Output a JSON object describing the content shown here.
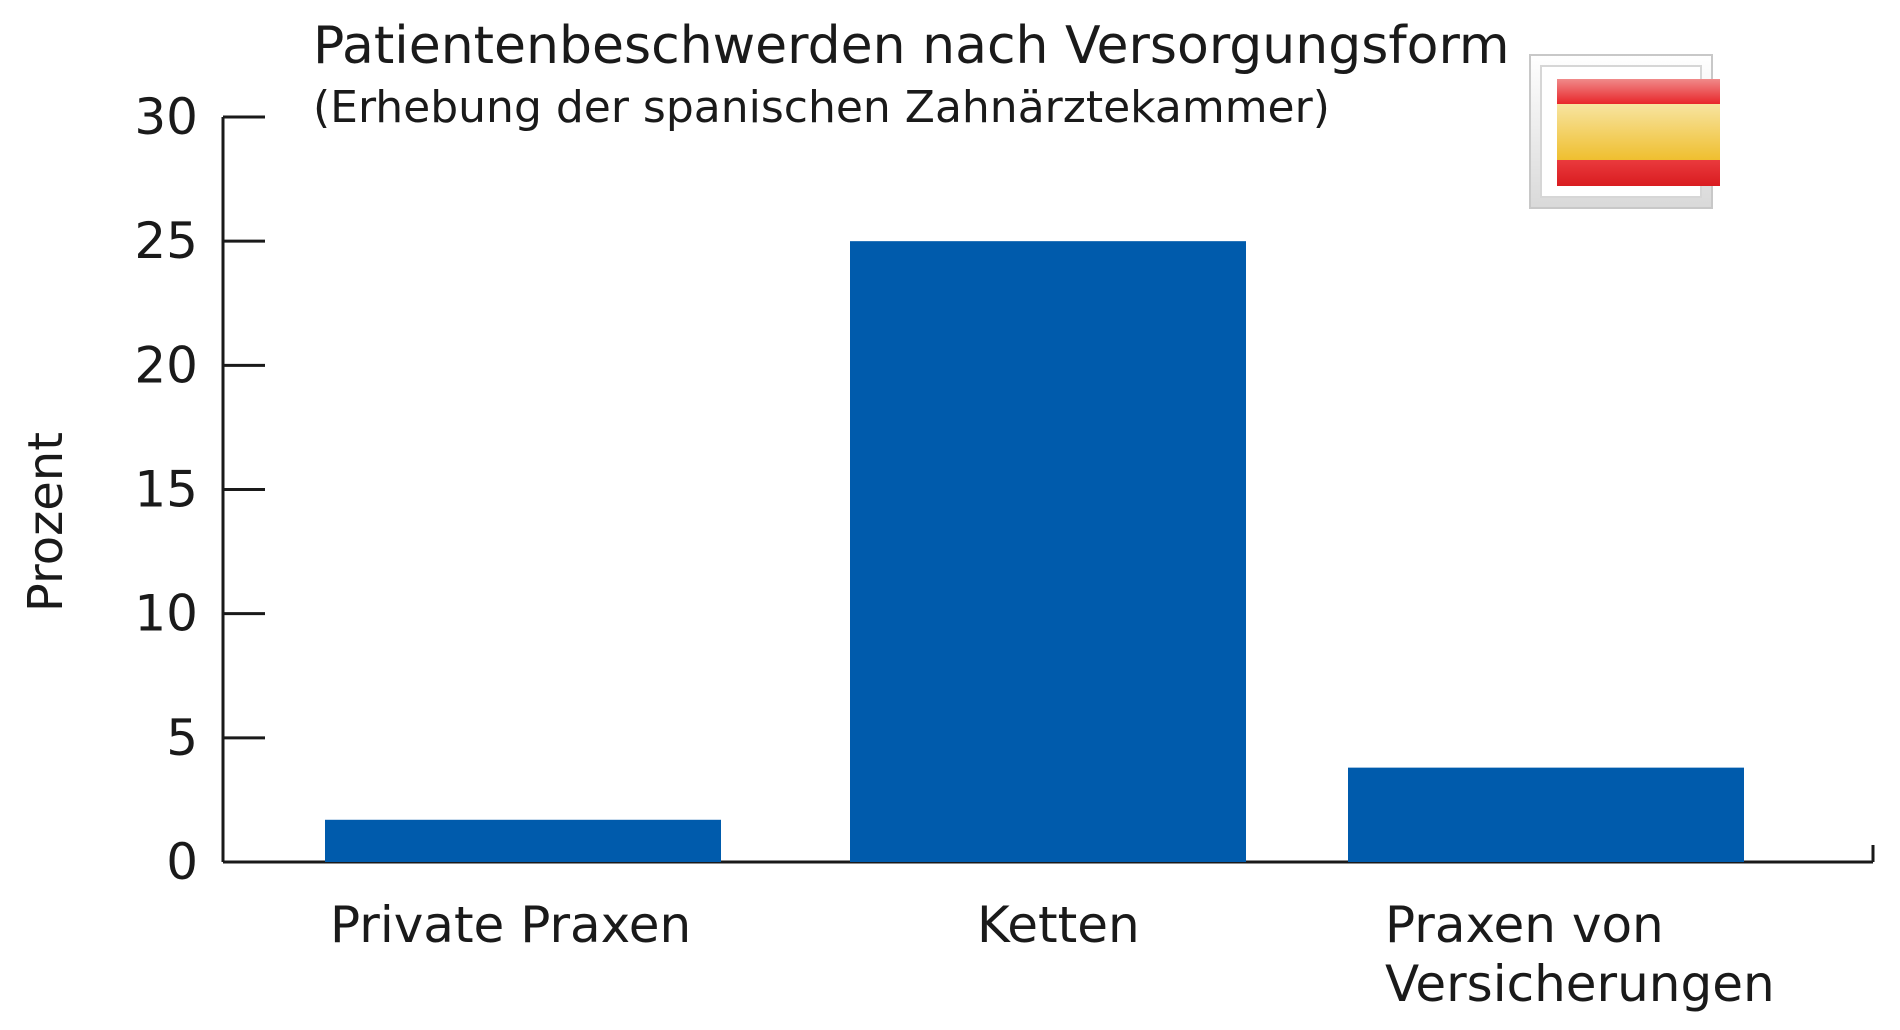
{
  "chart_data": {
    "type": "bar",
    "title": "Patientenbeschwerden nach Versorgungsform",
    "subtitle": "(Erhebung der spanischen Zahnärztekammer)",
    "ylabel": "Prozent",
    "xlabel": "",
    "ylim": [
      0,
      30
    ],
    "yticks": [
      0,
      5,
      10,
      15,
      20,
      25,
      30
    ],
    "categories": [
      [
        "Private Praxen"
      ],
      [
        "Ketten"
      ],
      [
        "Praxen von",
        "Versicherungen"
      ]
    ],
    "values": [
      1.7,
      25,
      3.8
    ],
    "bar_color": "#005bac",
    "grid": false,
    "legend": "none"
  },
  "flag": {
    "icon": "spain-flag-icon",
    "colors": {
      "red": "#e8262a",
      "yellow": "#f0c33c",
      "frame": "#e6e6e6"
    }
  }
}
